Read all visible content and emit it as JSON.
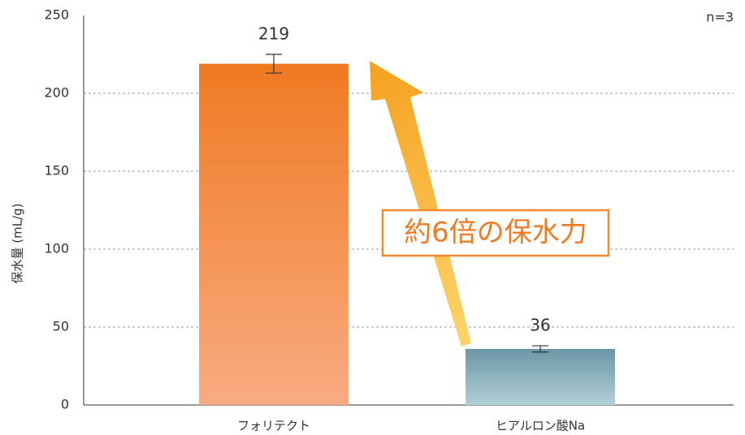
{
  "chart_data": {
    "type": "bar",
    "categories": [
      "フォリテクト",
      "ヒアルロン酸Na"
    ],
    "values": [
      219,
      36
    ],
    "errors": [
      6,
      2
    ],
    "colors": [
      [
        "#f07a22",
        "#f8ab82"
      ],
      [
        "#6a96a5",
        "#b3cfd8"
      ]
    ],
    "ylabel": "保水量 (mL/g)",
    "ylim": [
      0,
      250
    ],
    "yticks": [
      0,
      50,
      100,
      150,
      200,
      250
    ],
    "grid": true,
    "annotation": "約6倍の保水力",
    "note": "n=3"
  }
}
